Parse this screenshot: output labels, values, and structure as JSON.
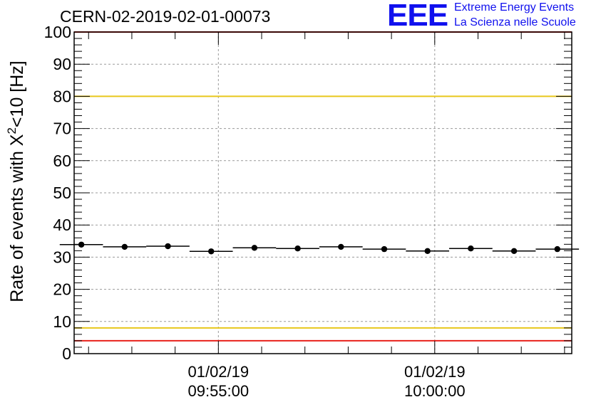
{
  "header": {
    "title": "CERN-02-2019-02-01-00073",
    "logo_text": "EEE",
    "logo_line1": "Extreme Energy Events",
    "logo_line2": "La Scienza nelle Scuole"
  },
  "colors": {
    "logo": "#1010ee",
    "red_limit": "#e8211b",
    "yellow_limit": "#e8c71b",
    "grid": "#9a9a9a",
    "points": "#000000"
  },
  "chart_data": {
    "type": "scatter",
    "title": "CERN-02-2019-02-01-00073",
    "xlabel": "",
    "ylabel": "Rate of events with X²<10 [Hz]",
    "ylabel_parts": [
      "Rate of events with X",
      "2",
      "<10 [Hz]"
    ],
    "ylim": [
      0,
      100
    ],
    "yticks": [
      0,
      10,
      20,
      30,
      40,
      50,
      60,
      70,
      80,
      90,
      100
    ],
    "xlim": [
      "01/02/19 09:51:40",
      "01/02/19 10:03:10"
    ],
    "xticks": [
      {
        "time": "01/02/19 09:55:00",
        "date": "01/02/19",
        "clock": "09:55:00"
      },
      {
        "time": "01/02/19 10:00:00",
        "date": "01/02/19",
        "clock": "10:00:00"
      }
    ],
    "grid": true,
    "series": [
      {
        "x": [
          "01/02/19 09:51:50",
          "01/02/19 09:52:50",
          "01/02/19 09:53:50",
          "01/02/19 09:54:50",
          "01/02/19 09:55:50",
          "01/02/19 09:56:50",
          "01/02/19 09:57:50",
          "01/02/19 09:58:50",
          "01/02/19 09:59:50",
          "01/02/19 10:00:50",
          "01/02/19 10:01:50",
          "01/02/19 10:02:50"
        ],
        "y": [
          33.9,
          33.2,
          33.4,
          31.8,
          32.9,
          32.7,
          33.2,
          32.5,
          31.9,
          32.7,
          31.9,
          32.5
        ],
        "bin_width_s": 60
      }
    ],
    "reference_lines": [
      {
        "y": 4,
        "color": "#e8211b"
      },
      {
        "y": 8,
        "color": "#e8c71b"
      },
      {
        "y": 80,
        "color": "#e8c71b"
      },
      {
        "y": 100,
        "color": "#e8211b"
      }
    ]
  }
}
